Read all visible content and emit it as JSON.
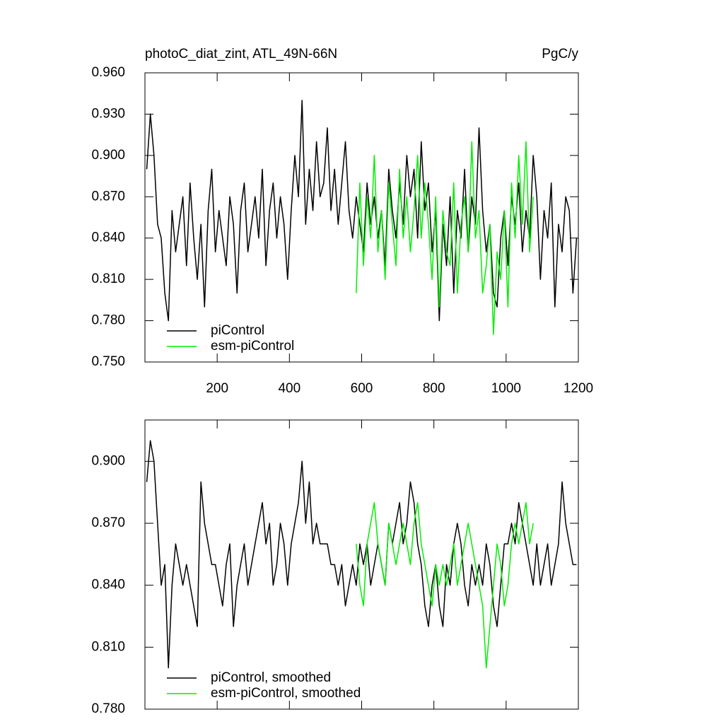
{
  "chart_data": [
    {
      "type": "line",
      "title": "photoC_diat_zint, ATL_49N-66N",
      "units": "PgC/y",
      "xlim": [
        0,
        1200
      ],
      "xticks": [
        200,
        400,
        600,
        800,
        1000,
        1200
      ],
      "xtick_labels": true,
      "ylim": [
        0.75,
        0.96
      ],
      "yticks": [
        {
          "value": 0.75,
          "label": "0.750"
        },
        {
          "value": 0.78,
          "label": "0.780"
        },
        {
          "value": 0.81,
          "label": "0.810"
        },
        {
          "value": 0.84,
          "label": "0.840"
        },
        {
          "value": 0.87,
          "label": "0.870"
        },
        {
          "value": 0.9,
          "label": "0.900"
        },
        {
          "value": 0.93,
          "label": "0.930"
        },
        {
          "value": 0.96,
          "label": "0.960"
        }
      ],
      "legend": "lower left",
      "series": [
        {
          "name": "piControl",
          "color": "#000000",
          "x": [
            5,
            15,
            25,
            35,
            45,
            55,
            65,
            75,
            85,
            95,
            105,
            115,
            125,
            135,
            145,
            155,
            165,
            175,
            185,
            195,
            205,
            215,
            225,
            235,
            245,
            255,
            265,
            275,
            285,
            295,
            305,
            315,
            325,
            335,
            345,
            355,
            365,
            375,
            385,
            395,
            405,
            415,
            425,
            435,
            445,
            455,
            465,
            475,
            485,
            495,
            505,
            515,
            525,
            535,
            545,
            555,
            565,
            575,
            585,
            595,
            605,
            615,
            625,
            635,
            645,
            655,
            665,
            675,
            685,
            695,
            705,
            715,
            725,
            735,
            745,
            755,
            765,
            775,
            785,
            795,
            805,
            815,
            825,
            835,
            845,
            855,
            865,
            875,
            885,
            895,
            905,
            915,
            925,
            935,
            945,
            955,
            965,
            975,
            985,
            995,
            1005,
            1015,
            1025,
            1035,
            1045,
            1055,
            1065,
            1075,
            1085,
            1095,
            1105,
            1115,
            1125,
            1135,
            1145,
            1155,
            1165,
            1175,
            1185,
            1195
          ],
          "values": [
            0.89,
            0.93,
            0.9,
            0.85,
            0.84,
            0.8,
            0.78,
            0.86,
            0.83,
            0.85,
            0.87,
            0.82,
            0.88,
            0.84,
            0.81,
            0.85,
            0.79,
            0.86,
            0.89,
            0.83,
            0.86,
            0.84,
            0.82,
            0.87,
            0.85,
            0.8,
            0.86,
            0.88,
            0.83,
            0.85,
            0.87,
            0.84,
            0.89,
            0.82,
            0.86,
            0.88,
            0.84,
            0.87,
            0.85,
            0.81,
            0.86,
            0.9,
            0.87,
            0.94,
            0.85,
            0.89,
            0.86,
            0.91,
            0.87,
            0.88,
            0.92,
            0.86,
            0.89,
            0.85,
            0.88,
            0.91,
            0.86,
            0.84,
            0.87,
            0.85,
            0.83,
            0.88,
            0.85,
            0.87,
            0.84,
            0.86,
            0.82,
            0.89,
            0.86,
            0.84,
            0.88,
            0.85,
            0.9,
            0.87,
            0.89,
            0.84,
            0.91,
            0.86,
            0.88,
            0.83,
            0.86,
            0.78,
            0.85,
            0.82,
            0.87,
            0.8,
            0.86,
            0.84,
            0.89,
            0.83,
            0.87,
            0.85,
            0.92,
            0.86,
            0.83,
            0.85,
            0.8,
            0.79,
            0.84,
            0.86,
            0.82,
            0.87,
            0.85,
            0.88,
            0.83,
            0.86,
            0.84,
            0.9,
            0.87,
            0.81,
            0.86,
            0.84,
            0.88,
            0.79,
            0.85,
            0.83,
            0.87,
            0.86,
            0.8,
            0.84
          ]
        },
        {
          "name": "esm-piControl",
          "color": "#00ee00",
          "x": [
            585,
            595,
            605,
            615,
            625,
            635,
            645,
            655,
            665,
            675,
            685,
            695,
            705,
            715,
            725,
            735,
            745,
            755,
            765,
            775,
            785,
            795,
            805,
            815,
            825,
            835,
            845,
            855,
            865,
            875,
            885,
            895,
            905,
            915,
            925,
            935,
            945,
            955,
            965,
            975,
            985,
            995,
            1005,
            1015,
            1025,
            1035,
            1045,
            1055,
            1065,
            1075
          ],
          "values": [
            0.8,
            0.88,
            0.82,
            0.87,
            0.84,
            0.9,
            0.83,
            0.86,
            0.81,
            0.88,
            0.85,
            0.82,
            0.89,
            0.84,
            0.87,
            0.83,
            0.86,
            0.9,
            0.84,
            0.88,
            0.85,
            0.81,
            0.87,
            0.79,
            0.86,
            0.83,
            0.82,
            0.88,
            0.8,
            0.85,
            0.87,
            0.83,
            0.91,
            0.84,
            0.86,
            0.8,
            0.82,
            0.85,
            0.77,
            0.83,
            0.81,
            0.86,
            0.79,
            0.88,
            0.84,
            0.9,
            0.85,
            0.91,
            0.83,
            0.87
          ]
        }
      ]
    },
    {
      "type": "line",
      "xlim": [
        0,
        1200
      ],
      "xticks": [
        200,
        400,
        600,
        800,
        1000,
        1200
      ],
      "xtick_labels": false,
      "ylim": [
        0.78,
        0.92
      ],
      "yticks": [
        {
          "value": 0.78,
          "label": "0.780"
        },
        {
          "value": 0.81,
          "label": "0.810"
        },
        {
          "value": 0.84,
          "label": "0.840"
        },
        {
          "value": 0.87,
          "label": "0.870"
        },
        {
          "value": 0.9,
          "label": "0.900"
        }
      ],
      "legend": "lower left",
      "series": [
        {
          "name": "piControl, smoothed",
          "color": "#000000",
          "x": [
            5,
            15,
            25,
            35,
            45,
            55,
            65,
            75,
            85,
            95,
            105,
            115,
            125,
            135,
            145,
            155,
            165,
            175,
            185,
            195,
            205,
            215,
            225,
            235,
            245,
            255,
            265,
            275,
            285,
            295,
            305,
            315,
            325,
            335,
            345,
            355,
            365,
            375,
            385,
            395,
            405,
            415,
            425,
            435,
            445,
            455,
            465,
            475,
            485,
            495,
            505,
            515,
            525,
            535,
            545,
            555,
            565,
            575,
            585,
            595,
            605,
            615,
            625,
            635,
            645,
            655,
            665,
            675,
            685,
            695,
            705,
            715,
            725,
            735,
            745,
            755,
            765,
            775,
            785,
            795,
            805,
            815,
            825,
            835,
            845,
            855,
            865,
            875,
            885,
            895,
            905,
            915,
            925,
            935,
            945,
            955,
            965,
            975,
            985,
            995,
            1005,
            1015,
            1025,
            1035,
            1045,
            1055,
            1065,
            1075,
            1085,
            1095,
            1105,
            1115,
            1125,
            1135,
            1145,
            1155,
            1165,
            1175,
            1185,
            1195
          ],
          "values": [
            0.89,
            0.91,
            0.9,
            0.87,
            0.84,
            0.85,
            0.8,
            0.84,
            0.86,
            0.85,
            0.84,
            0.85,
            0.84,
            0.83,
            0.82,
            0.89,
            0.87,
            0.86,
            0.85,
            0.85,
            0.84,
            0.83,
            0.85,
            0.86,
            0.82,
            0.84,
            0.85,
            0.86,
            0.84,
            0.85,
            0.86,
            0.87,
            0.88,
            0.86,
            0.87,
            0.84,
            0.85,
            0.87,
            0.86,
            0.84,
            0.86,
            0.87,
            0.88,
            0.9,
            0.87,
            0.89,
            0.86,
            0.87,
            0.86,
            0.86,
            0.86,
            0.85,
            0.85,
            0.84,
            0.85,
            0.83,
            0.84,
            0.85,
            0.84,
            0.86,
            0.85,
            0.86,
            0.84,
            0.85,
            0.86,
            0.85,
            0.84,
            0.87,
            0.86,
            0.87,
            0.88,
            0.86,
            0.87,
            0.89,
            0.88,
            0.86,
            0.85,
            0.83,
            0.82,
            0.84,
            0.85,
            0.83,
            0.82,
            0.85,
            0.84,
            0.86,
            0.87,
            0.86,
            0.84,
            0.83,
            0.85,
            0.84,
            0.85,
            0.84,
            0.86,
            0.85,
            0.83,
            0.82,
            0.84,
            0.86,
            0.86,
            0.87,
            0.86,
            0.88,
            0.87,
            0.86,
            0.85,
            0.84,
            0.86,
            0.84,
            0.85,
            0.86,
            0.84,
            0.85,
            0.86,
            0.89,
            0.87,
            0.86,
            0.85,
            0.85
          ]
        },
        {
          "name": "esm-piControl, smoothed",
          "color": "#00ee00",
          "x": [
            585,
            595,
            605,
            615,
            625,
            635,
            645,
            655,
            665,
            675,
            685,
            695,
            705,
            715,
            725,
            735,
            745,
            755,
            765,
            775,
            785,
            795,
            805,
            815,
            825,
            835,
            845,
            855,
            865,
            875,
            885,
            895,
            905,
            915,
            925,
            935,
            945,
            955,
            965,
            975,
            985,
            995,
            1005,
            1015,
            1025,
            1035,
            1045,
            1055,
            1065,
            1075
          ],
          "values": [
            0.86,
            0.84,
            0.83,
            0.86,
            0.87,
            0.88,
            0.86,
            0.85,
            0.84,
            0.87,
            0.86,
            0.85,
            0.86,
            0.87,
            0.86,
            0.85,
            0.87,
            0.88,
            0.86,
            0.85,
            0.84,
            0.83,
            0.85,
            0.84,
            0.85,
            0.84,
            0.85,
            0.86,
            0.84,
            0.85,
            0.86,
            0.87,
            0.86,
            0.85,
            0.84,
            0.83,
            0.8,
            0.82,
            0.84,
            0.86,
            0.85,
            0.83,
            0.84,
            0.86,
            0.87,
            0.86,
            0.87,
            0.88,
            0.86,
            0.87
          ]
        }
      ]
    }
  ]
}
